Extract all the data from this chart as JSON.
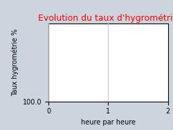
{
  "title": "Evolution du taux d'hygrométrie",
  "title_color": "#ff0000",
  "ylabel": "Taux hygrométrie %",
  "xlabel": "heure par heure",
  "xlim": [
    0,
    2
  ],
  "ylim": [
    100.0,
    20.0
  ],
  "xticks": [
    0,
    1,
    2
  ],
  "yticks": [
    100.0
  ],
  "ytick_labels": [
    "100.0"
  ],
  "background_color": "#ccd5de",
  "axes_background": "#ffffff",
  "grid_color": "#bbbbbb",
  "title_fontsize": 9,
  "label_fontsize": 7,
  "tick_fontsize": 7
}
